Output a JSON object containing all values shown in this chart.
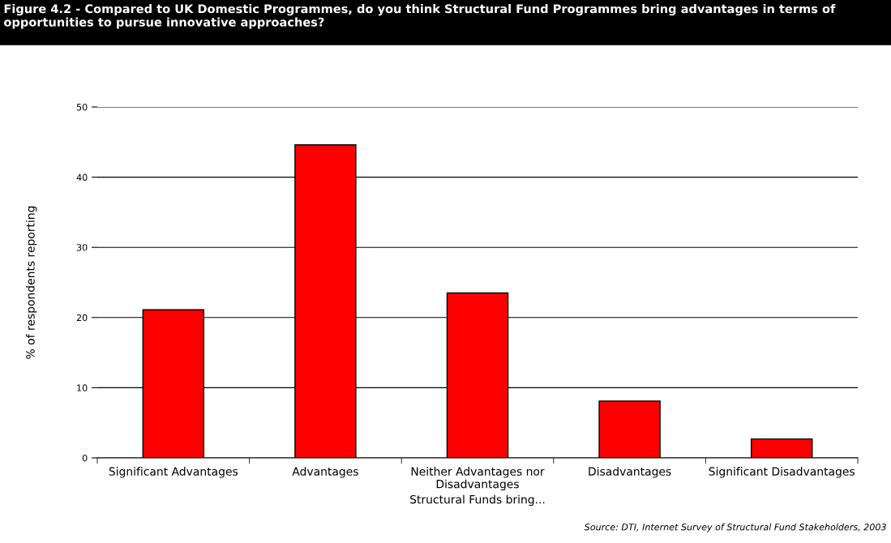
{
  "chart_data": {
    "type": "bar",
    "title": "Figure 4.2 - Compared to UK Domestic Programmes, do you think Structural Fund Programmes bring advantages in terms of opportunities to pursue innovative approaches?",
    "xlabel": "Structural Funds bring...",
    "ylabel": "% of respondents reporting",
    "categories": [
      "Significant Advantages",
      "Advantages",
      "Neither Advantages nor\nDisadvantages",
      "Disadvantages",
      "Significant Disadvantages"
    ],
    "values": [
      21.1,
      44.6,
      23.5,
      8.1,
      2.7
    ],
    "color": "#ff0000",
    "ylim": [
      0,
      50
    ],
    "yticks": [
      0,
      10,
      20,
      30,
      40,
      50
    ],
    "grid": "y",
    "annotations": [
      "Source: DTI, Internet Survey of Structural Fund Stakeholders, 2003"
    ]
  }
}
